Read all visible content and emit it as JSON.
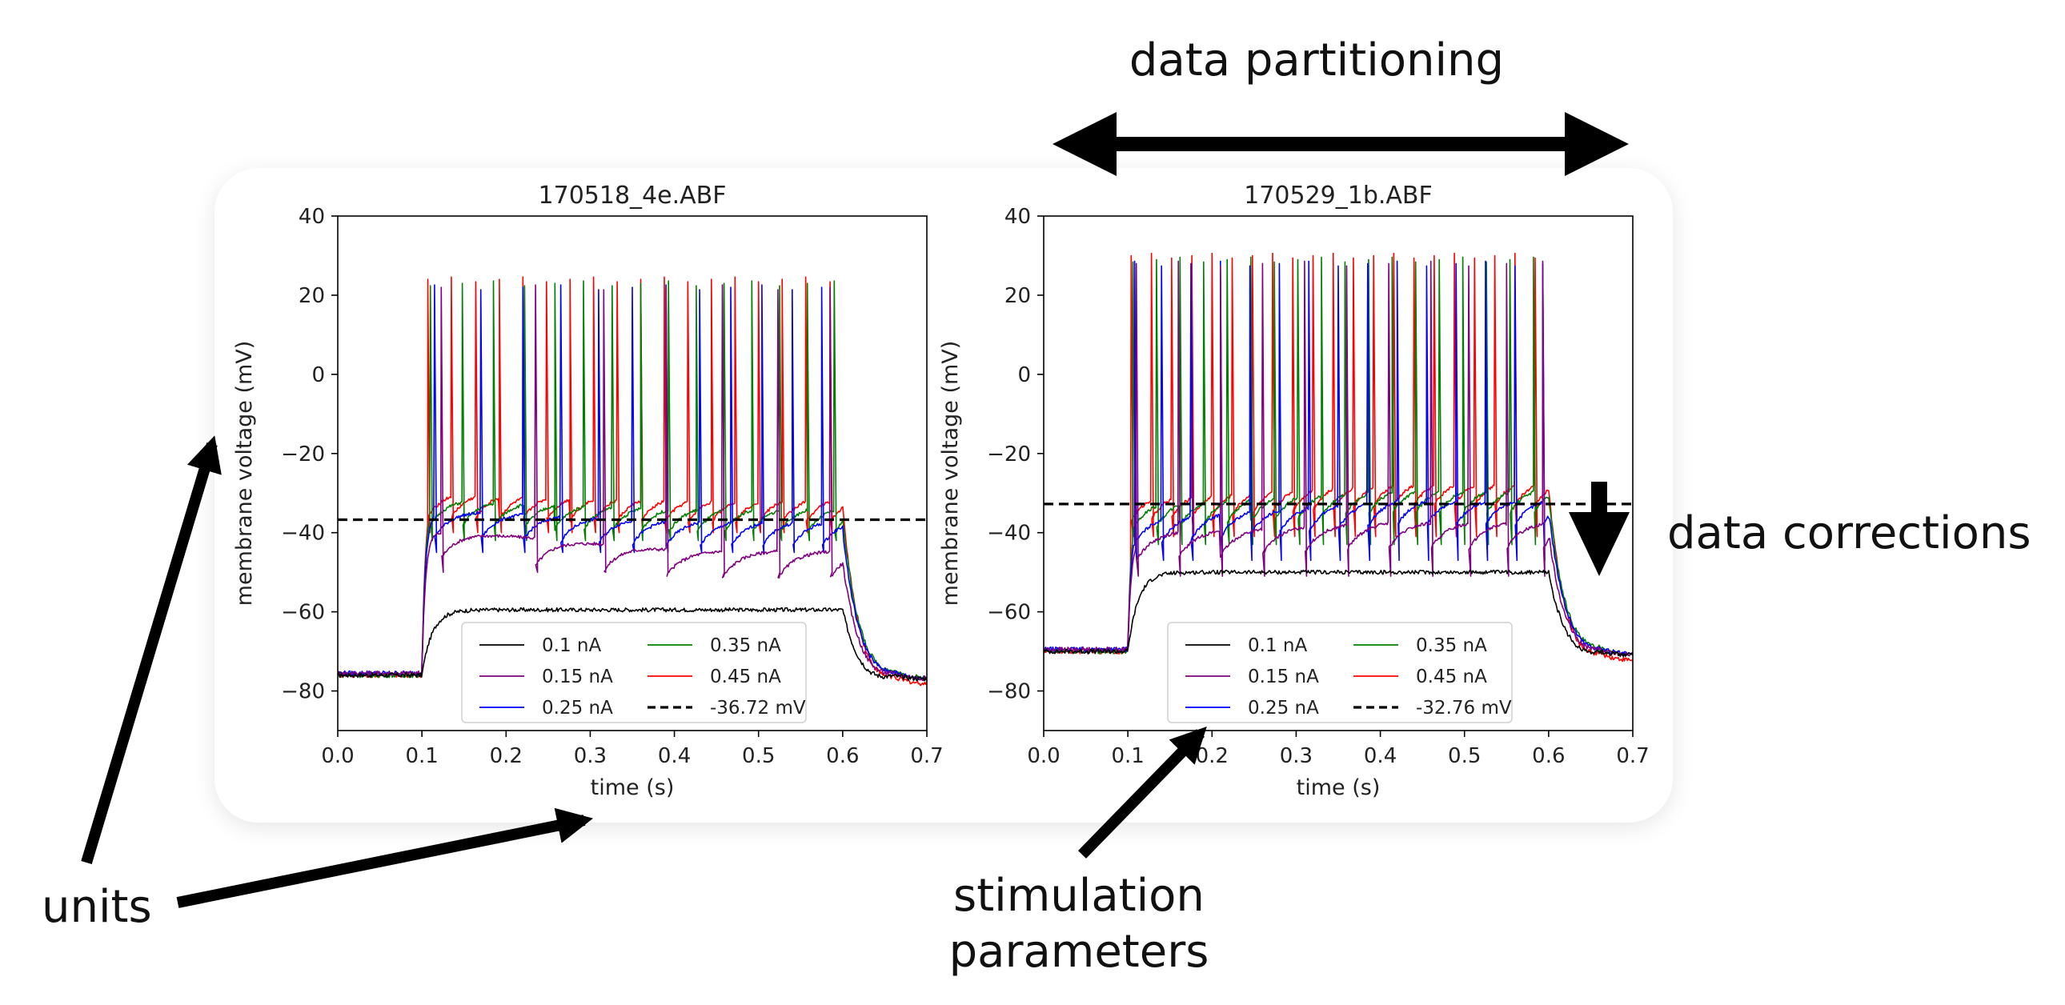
{
  "annotations": {
    "top": "data partitioning",
    "right": "data corrections",
    "units": "units",
    "stim_line1": "stimulation",
    "stim_line2": "parameters"
  },
  "chart_data": [
    {
      "type": "line",
      "title": "170518_4e.ABF",
      "xlabel": "time (s)",
      "ylabel": "membrane voltage (mV)",
      "xlim": [
        0,
        0.7
      ],
      "ylim": [
        -90,
        40
      ],
      "xticks": [
        "0.0",
        "0.1",
        "0.2",
        "0.3",
        "0.4",
        "0.5",
        "0.6",
        "0.7"
      ],
      "yticks": [
        "40",
        "20",
        "0",
        "−20",
        "−40",
        "−60",
        "−80"
      ],
      "grid": false,
      "legend_position": "bottom-center",
      "stim_on": 0.1,
      "stim_off": 0.6,
      "threshold": -36.72,
      "threshold_label": "-36.72 mV",
      "series": [
        {
          "name": "0.1 nA",
          "color": "#000000",
          "rest": -76,
          "plateau": -59.5,
          "spikes": []
        },
        {
          "name": "0.15 nA",
          "color": "#800080",
          "rest": -76,
          "plateau": -51.5,
          "trough_start": -46,
          "spike_peak": 22,
          "spikes": [
            0.123,
            0.235,
            0.316,
            0.39,
            0.457,
            0.523,
            0.585
          ]
        },
        {
          "name": "0.25 nA",
          "color": "#0000ff",
          "rest": -76,
          "plateau": -43.5,
          "trough_start": -41,
          "spike_peak": 22,
          "spikes": [
            0.115,
            0.17,
            0.22,
            0.265,
            0.31,
            0.35,
            0.39,
            0.43,
            0.467,
            0.504,
            0.54,
            0.575
          ]
        },
        {
          "name": "0.35 nA",
          "color": "#008000",
          "rest": -76,
          "plateau": -40,
          "trough_start": -38,
          "spike_peak": 23,
          "spikes": [
            0.11,
            0.148,
            0.185,
            0.222,
            0.258,
            0.292,
            0.326,
            0.36,
            0.393,
            0.426,
            0.459,
            0.492,
            0.525,
            0.558,
            0.59
          ]
        },
        {
          "name": "0.45 nA",
          "color": "#ff0000",
          "rest": -76,
          "plateau": -37.5,
          "trough_start": -36,
          "spike_peak": 24,
          "spikes": [
            0.107,
            0.135,
            0.164,
            0.192,
            0.22,
            0.248,
            0.276,
            0.304,
            0.332,
            0.36,
            0.388,
            0.416,
            0.444,
            0.472,
            0.5,
            0.528,
            0.556,
            0.585
          ]
        }
      ]
    },
    {
      "type": "line",
      "title": "170529_1b.ABF",
      "xlabel": "time (s)",
      "ylabel": "membrane voltage (mV)",
      "xlim": [
        0,
        0.7
      ],
      "ylim": [
        -90,
        40
      ],
      "xticks": [
        "0.0",
        "0.1",
        "0.2",
        "0.3",
        "0.4",
        "0.5",
        "0.6",
        "0.7"
      ],
      "yticks": [
        "40",
        "20",
        "0",
        "−20",
        "−40",
        "−60",
        "−80"
      ],
      "grid": false,
      "legend_position": "bottom-center",
      "stim_on": 0.1,
      "stim_off": 0.6,
      "threshold": -32.76,
      "threshold_label": "-32.76 mV",
      "series": [
        {
          "name": "0.1 nA",
          "color": "#000000",
          "rest": -70,
          "plateau": -50,
          "spikes": []
        },
        {
          "name": "0.15 nA",
          "color": "#800080",
          "rest": -70,
          "plateau": -44,
          "trough_start": -47,
          "spike_peak": 28,
          "spikes": [
            0.11,
            0.16,
            0.21,
            0.26,
            0.31,
            0.36,
            0.41,
            0.46,
            0.505,
            0.55,
            0.593
          ]
        },
        {
          "name": "0.25 nA",
          "color": "#0000ff",
          "rest": -70,
          "plateau": -38,
          "trough_start": -43,
          "spike_peak": 28,
          "spikes": [
            0.108,
            0.14,
            0.175,
            0.21,
            0.245,
            0.28,
            0.315,
            0.35,
            0.385,
            0.42,
            0.455,
            0.49,
            0.525,
            0.56,
            0.593
          ]
        },
        {
          "name": "0.35 nA",
          "color": "#008000",
          "rest": -70,
          "plateau": -35,
          "trough_start": -39,
          "spike_peak": 29,
          "spikes": [
            0.106,
            0.134,
            0.162,
            0.19,
            0.218,
            0.246,
            0.274,
            0.302,
            0.33,
            0.358,
            0.386,
            0.414,
            0.442,
            0.47,
            0.498,
            0.526,
            0.554,
            0.582
          ]
        },
        {
          "name": "0.45 nA",
          "color": "#ff0000",
          "rest": -70,
          "plateau": -33,
          "trough_start": -37,
          "spike_peak": 30,
          "spikes": [
            0.104,
            0.128,
            0.152,
            0.176,
            0.2,
            0.224,
            0.248,
            0.272,
            0.296,
            0.32,
            0.344,
            0.368,
            0.392,
            0.416,
            0.44,
            0.464,
            0.488,
            0.512,
            0.536,
            0.56,
            0.584
          ]
        }
      ]
    }
  ]
}
